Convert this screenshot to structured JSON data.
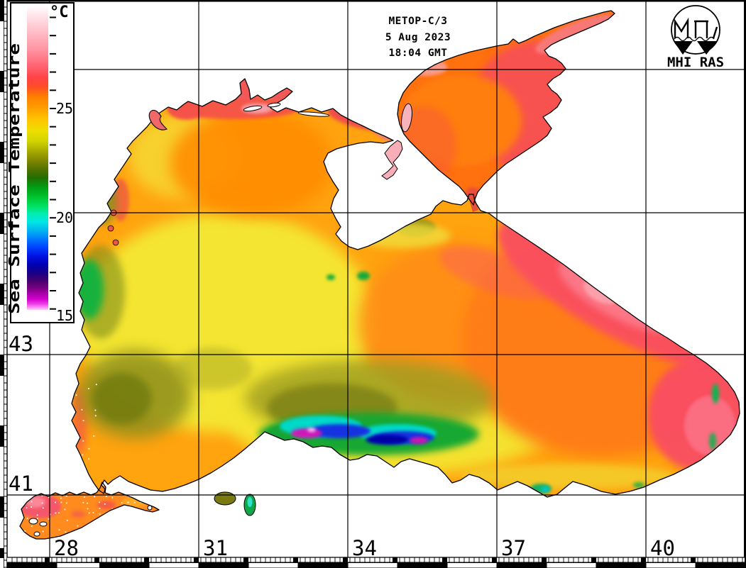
{
  "header": {
    "satellite": "METOP-C/3",
    "date": "5 Aug 2023",
    "time": "18:04 GMT"
  },
  "logo": {
    "label": "MHI RAS"
  },
  "legend": {
    "title": "Sea Surface Temperature",
    "unit": "°C",
    "tick_labels": [
      "25",
      "20",
      "15"
    ],
    "scale_stops": [
      {
        "pos": 0.0,
        "color": "#FFFFFF"
      },
      {
        "pos": 3.3,
        "color": "#FFE4EA"
      },
      {
        "pos": 8.6,
        "color": "#FFBEC8"
      },
      {
        "pos": 14.5,
        "color": "#FF94A2"
      },
      {
        "pos": 19.8,
        "color": "#FF6472"
      },
      {
        "pos": 23.8,
        "color": "#FF4244"
      },
      {
        "pos": 26.6,
        "color": "#FF4C28"
      },
      {
        "pos": 29.8,
        "color": "#FF7E00"
      },
      {
        "pos": 33.6,
        "color": "#FF9E00"
      },
      {
        "pos": 37.3,
        "color": "#FFC400"
      },
      {
        "pos": 41.0,
        "color": "#EEDE00"
      },
      {
        "pos": 44.5,
        "color": "#D2D400"
      },
      {
        "pos": 48.0,
        "color": "#A6A800"
      },
      {
        "pos": 51.0,
        "color": "#7E8600"
      },
      {
        "pos": 53.8,
        "color": "#527200"
      },
      {
        "pos": 56.6,
        "color": "#226E00"
      },
      {
        "pos": 59.7,
        "color": "#009E14"
      },
      {
        "pos": 62.9,
        "color": "#00C42E"
      },
      {
        "pos": 66.0,
        "color": "#00E262"
      },
      {
        "pos": 68.5,
        "color": "#00EEB4"
      },
      {
        "pos": 71.1,
        "color": "#00E6E6"
      },
      {
        "pos": 73.9,
        "color": "#00B4EE"
      },
      {
        "pos": 76.7,
        "color": "#007AFE"
      },
      {
        "pos": 79.5,
        "color": "#0042FE"
      },
      {
        "pos": 82.3,
        "color": "#0012E4"
      },
      {
        "pos": 85.1,
        "color": "#0000B2"
      },
      {
        "pos": 87.9,
        "color": "#180086"
      },
      {
        "pos": 90.4,
        "color": "#44006E"
      },
      {
        "pos": 92.8,
        "color": "#780082"
      },
      {
        "pos": 94.6,
        "color": "#A800A8"
      },
      {
        "pos": 96.5,
        "color": "#D400CE"
      },
      {
        "pos": 98.1,
        "color": "#EE42E6"
      },
      {
        "pos": 99.3,
        "color": "#FF96F6"
      },
      {
        "pos": 100.0,
        "color": "#FFCEFE"
      }
    ]
  },
  "axes": {
    "latitude_labels": [
      "43",
      "41"
    ],
    "longitude_labels": [
      "28",
      "31",
      "34",
      "37",
      "40"
    ]
  },
  "map_colors": {
    "land": "#FFFFFF",
    "coastline": "#000000",
    "grid": "#000000",
    "base_sea_orange": "#FFA30F",
    "warm_pink_northeast": "#FA5060",
    "azov_orange": "#FF700E",
    "yellow_west_zone": "#F4E532",
    "olive_zone": "#8F8F1E",
    "upwelling_green": "#19A832",
    "upwelling_cyan": "#00D8C8",
    "upwelling_blue": "#1430E0",
    "upwelling_magenta": "#D018B8",
    "lagoon_pale_pink": "#F7AEB8"
  }
}
